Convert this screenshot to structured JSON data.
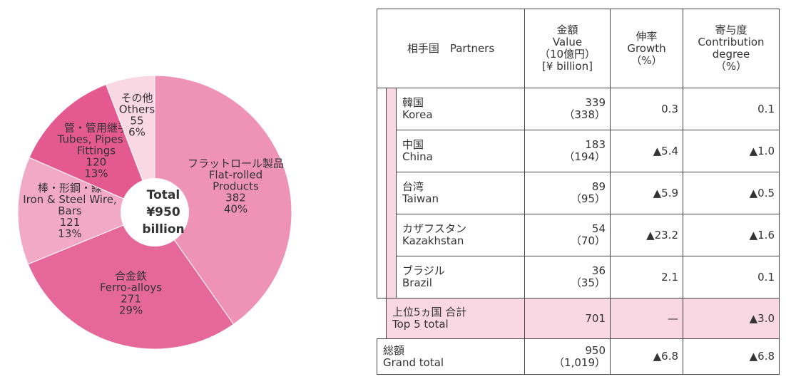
{
  "chart_data": {
    "type": "pie",
    "label_lines": [
      [
        "フラットロール製品",
        "Flat-rolled",
        "Products"
      ],
      [
        "合金鉄",
        "Ferro-alloys"
      ],
      [
        "棒・形鋼・線",
        "Iron & Steel Wire,",
        "Bars"
      ],
      [
        "管・管用継手",
        "Tubes, Pipes &",
        "Fittings"
      ],
      [
        "その他",
        "Others"
      ]
    ],
    "values": [
      382,
      271,
      121,
      120,
      55
    ],
    "percent_labels": [
      "40%",
      "29%",
      "13%",
      "13%",
      "6%"
    ],
    "colors": [
      "#ee93b5",
      "#e6689a",
      "#f2a9c5",
      "#e45a90",
      "#f9d8e4"
    ],
    "center_label": [
      "Total",
      "¥950",
      "billion"
    ]
  },
  "table": {
    "headers": [
      [
        "相手国　Partners"
      ],
      [
        "金額",
        "Value",
        "（10億円）",
        "[¥ billion]"
      ],
      [
        "伸率",
        "Growth",
        "（%）"
      ],
      [
        "寄与度",
        "Contribution",
        "degree",
        "（%）"
      ]
    ],
    "rows": [
      {
        "name": [
          "韓国",
          "Korea"
        ],
        "value": [
          "339",
          "（338）"
        ],
        "growth": "0.3",
        "contribution": "0.1"
      },
      {
        "name": [
          "中国",
          "China"
        ],
        "value": [
          "183",
          "（194）"
        ],
        "growth": "▲5.4",
        "contribution": "▲1.0"
      },
      {
        "name": [
          "台湾",
          "Taiwan"
        ],
        "value": [
          "89",
          "（95）"
        ],
        "growth": "▲5.9",
        "contribution": "▲0.5"
      },
      {
        "name": [
          "カザフスタン",
          "Kazakhstan"
        ],
        "value": [
          "54",
          "（70）"
        ],
        "growth": "▲23.2",
        "contribution": "▲1.6"
      },
      {
        "name": [
          "ブラジル",
          "Brazil"
        ],
        "value": [
          "36",
          "（35）"
        ],
        "growth": "2.1",
        "contribution": "0.1"
      },
      {
        "name": [
          "上位5ヵ国 合計",
          "Top 5 total"
        ],
        "value": [
          "701"
        ],
        "growth": "—",
        "contribution": "▲3.0"
      },
      {
        "name": [
          "総額",
          "Grand total"
        ],
        "value": [
          "950",
          "（1,019）"
        ],
        "growth": "▲6.8",
        "contribution": "▲6.8"
      }
    ]
  }
}
